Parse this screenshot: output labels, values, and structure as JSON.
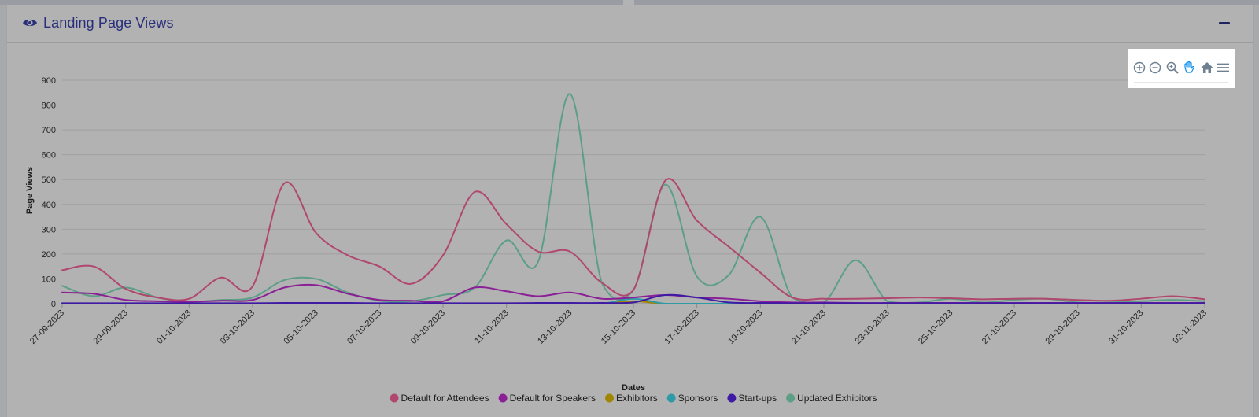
{
  "card": {
    "title": "Landing Page Views",
    "title_icon": "eye-icon",
    "collapse_icon": "minus-icon"
  },
  "toolbar": {
    "icons": [
      "zoom-in-icon",
      "zoom-out-icon",
      "magnifier-icon",
      "pan-hand-icon",
      "home-icon",
      "menu-icon"
    ]
  },
  "chart_data": {
    "type": "line",
    "xlabel": "Dates",
    "ylabel": "Page Views",
    "ylim": [
      0,
      900
    ],
    "yticks": [
      0,
      100,
      200,
      300,
      400,
      500,
      600,
      700,
      800,
      900
    ],
    "grid": true,
    "legend_position": "bottom",
    "x": [
      "27-09-2023",
      "28-09-2023",
      "29-09-2023",
      "30-09-2023",
      "01-10-2023",
      "02-10-2023",
      "03-10-2023",
      "04-10-2023",
      "05-10-2023",
      "06-10-2023",
      "07-10-2023",
      "08-10-2023",
      "09-10-2023",
      "10-10-2023",
      "11-10-2023",
      "12-10-2023",
      "13-10-2023",
      "14-10-2023",
      "15-10-2023",
      "16-10-2023",
      "17-10-2023",
      "18-10-2023",
      "19-10-2023",
      "20-10-2023",
      "21-10-2023",
      "22-10-2023",
      "23-10-2023",
      "24-10-2023",
      "25-10-2023",
      "26-10-2023",
      "27-10-2023",
      "28-10-2023",
      "29-10-2023",
      "30-10-2023",
      "31-10-2023",
      "01-11-2023",
      "02-11-2023"
    ],
    "xtick_labels": [
      "27-09-2023",
      "29-09-2023",
      "01-10-2023",
      "03-10-2023",
      "05-10-2023",
      "07-10-2023",
      "09-10-2023",
      "11-10-2023",
      "13-10-2023",
      "15-10-2023",
      "17-10-2023",
      "19-10-2023",
      "21-10-2023",
      "23-10-2023",
      "25-10-2023",
      "27-10-2023",
      "29-10-2023",
      "31-10-2023",
      "02-11-2023"
    ],
    "series": [
      {
        "name": "Default for Attendees",
        "color": "#b0476f",
        "values": [
          135,
          150,
          60,
          25,
          20,
          105,
          70,
          485,
          285,
          195,
          150,
          80,
          195,
          450,
          320,
          210,
          210,
          85,
          55,
          495,
          335,
          230,
          125,
          25,
          20,
          20,
          22,
          25,
          22,
          18,
          20,
          20,
          15,
          12,
          20,
          30,
          18
        ]
      },
      {
        "name": "Default for Speakers",
        "color": "#8a1f96",
        "values": [
          45,
          40,
          15,
          10,
          8,
          12,
          15,
          65,
          75,
          40,
          15,
          12,
          10,
          65,
          50,
          30,
          45,
          20,
          25,
          35,
          25,
          20,
          10,
          5,
          5,
          3,
          3,
          3,
          3,
          3,
          3,
          3,
          3,
          3,
          3,
          3,
          3
        ]
      },
      {
        "name": "Exhibitors",
        "color": "#a08600",
        "values": [
          0,
          0,
          0,
          0,
          0,
          0,
          0,
          0,
          0,
          0,
          0,
          0,
          0,
          0,
          0,
          0,
          0,
          0,
          10,
          0,
          0,
          0,
          0,
          0,
          0,
          0,
          0,
          0,
          0,
          0,
          0,
          0,
          0,
          0,
          0,
          0,
          0
        ]
      },
      {
        "name": "Sponsors",
        "color": "#2e9aa6",
        "values": [
          0,
          0,
          0,
          0,
          0,
          0,
          0,
          0,
          0,
          0,
          0,
          0,
          0,
          0,
          0,
          0,
          0,
          0,
          20,
          0,
          0,
          0,
          0,
          0,
          0,
          0,
          0,
          0,
          0,
          0,
          0,
          0,
          0,
          0,
          0,
          0,
          0
        ]
      },
      {
        "name": "Start-ups",
        "color": "#3f1aa3",
        "values": [
          2,
          2,
          2,
          2,
          2,
          2,
          2,
          3,
          3,
          3,
          2,
          2,
          2,
          2,
          2,
          3,
          3,
          3,
          5,
          35,
          25,
          5,
          3,
          2,
          2,
          2,
          2,
          2,
          2,
          2,
          2,
          2,
          2,
          2,
          2,
          2,
          2
        ]
      },
      {
        "name": "Updated Exhibitors",
        "color": "#5c9e86",
        "values": [
          72,
          30,
          65,
          25,
          8,
          15,
          25,
          95,
          100,
          45,
          12,
          10,
          35,
          65,
          255,
          170,
          845,
          85,
          55,
          480,
          110,
          115,
          350,
          25,
          5,
          175,
          10,
          5,
          20,
          5,
          15,
          20,
          5,
          5,
          10,
          15,
          10
        ]
      }
    ]
  }
}
